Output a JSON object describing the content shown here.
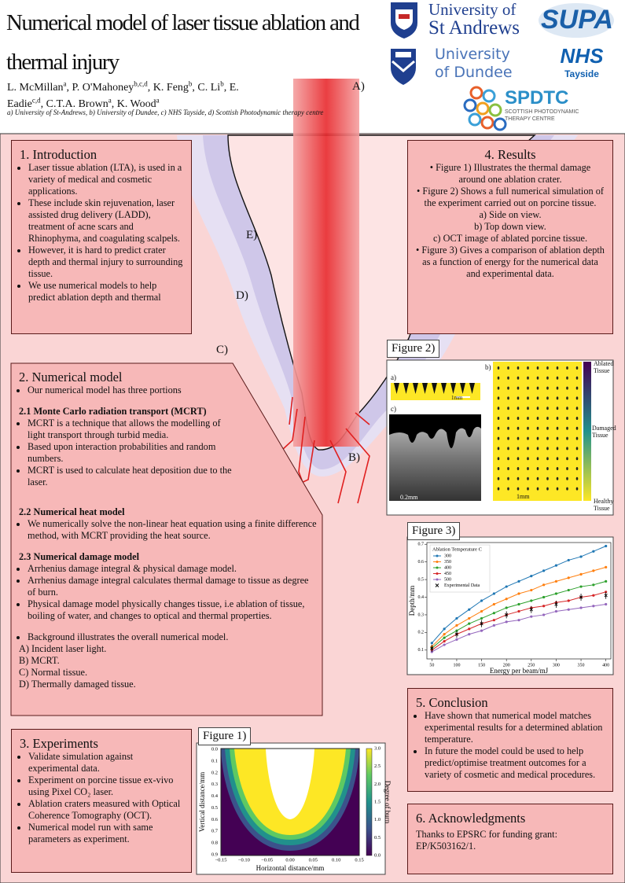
{
  "header": {
    "title": "Numerical model of laser tissue ablation and thermal injury",
    "authors": [
      {
        "name": "L. McMillan",
        "aff": "a"
      },
      {
        "name": "P. O'Mahoney",
        "aff": "b,c,d"
      },
      {
        "name": "K. Feng",
        "aff": "b"
      },
      {
        "name": "C. Li",
        "aff": "b"
      },
      {
        "name": "E. Eadie",
        "aff": "c,d"
      },
      {
        "name": "C.T.A. Brown",
        "aff": "a"
      },
      {
        "name": "K. Wood",
        "aff": "a"
      }
    ],
    "affiliations": "a) University of St-Andrews, b) University of Dundee, c) NHS Tayside, d) Scottish Photodynamic therapy centre"
  },
  "logos": {
    "st_andrews": [
      "University of",
      "St Andrews"
    ],
    "supa": "SUPA",
    "dundee": [
      "University",
      "of Dundee"
    ],
    "nhs": [
      "NHS",
      "Tayside"
    ],
    "spdtc": [
      "SPDTC",
      "SCOTTISH PHOTODYNAMIC",
      "THERAPY CENTRE"
    ]
  },
  "diagram_labels": [
    "A)",
    "B)",
    "C)",
    "D)",
    "E)"
  ],
  "introduction": {
    "title": "1. Introduction",
    "bullets": [
      "Laser tissue ablation (LTA), is used in a variety of medical and cosmetic applications.",
      "These include skin rejuvenation, laser assisted drug delivery (LADD), treatment of acne scars and Rhinophyma, and coagulating scalpels.",
      "However, it is hard to predict crater depth and thermal injury to surrounding tissue.",
      "We use numerical models to help predict ablation depth and thermal"
    ]
  },
  "results": {
    "title": "4. Results",
    "items": [
      "• Figure 1) Illustrates the thermal damage around one ablation crater.",
      "• Figure 2) Shows a full numerical simulation of the experiment carried out on porcine tissue.",
      "a) Side on view.",
      "b) Top down view.",
      "c) OCT image of ablated porcine tissue.",
      "• Figure 3) Gives a comparison of ablation depth as a function of energy for the numerical data and experimental data."
    ]
  },
  "numerical_model": {
    "title": "2. Numerical model",
    "intro": [
      "Our numerical model has three portions"
    ],
    "subsections": [
      {
        "title": "2.1 Monte Carlo radiation transport (MCRT)",
        "bullets": [
          "MCRT is a technique that allows the modelling of light transport through turbid media.",
          "Based upon interaction probabilities and random numbers.",
          "MCRT is used to calculate heat deposition due to the laser."
        ]
      },
      {
        "title": "2.2 Numerical heat model",
        "bullets": [
          "We numerically solve the non-linear heat equation using a finite difference method, with MCRT providing the heat source."
        ]
      },
      {
        "title": "2.3 Numerical damage model",
        "bullets": [
          "Arrhenius damage integral & physical damage model.",
          "Arrhenius damage integral calculates thermal damage to tissue as degree of burn.",
          "Physical damage model physically changes tissue, i.e ablation of tissue, boiling of water, and changes to optical and thermal properties."
        ]
      }
    ],
    "background": [
      "Background illustrates the overall numerical model."
    ],
    "key": [
      "A) Incident laser light.",
      "B) MCRT.",
      "C) Normal tissue.",
      "D) Thermally damaged tissue."
    ]
  },
  "experiments": {
    "title": "3. Experiments",
    "bullets": [
      "Validate simulation against experimental data.",
      "Experiment on porcine tissue ex-vivo using Pixel CO₂ laser.",
      "Ablation craters measured with Optical Coherence Tomography (OCT).",
      "Numerical model run with same parameters as experiment."
    ]
  },
  "conclusion": {
    "title": "5. Conclusion",
    "bullets": [
      "Have shown that numerical model matches experimental results for a determined ablation temperature.",
      "In future the model could be used to help predict/optimise treatment outcomes for a variety of cosmetic and medical procedures."
    ]
  },
  "acknowledgments": {
    "title": "6. Acknowledgments",
    "text": "Thanks to EPSRC for funding grant: EP/K503162/1."
  },
  "figure1": {
    "title": "Figure 1)",
    "xlabel": "Horizontal distance/mm",
    "ylabel": "Vertical distance/mm",
    "colorbar_label": "Degree of burn",
    "xticks": [
      "−0.15",
      "−0.10",
      "−0.05",
      "0.00",
      "0.05",
      "0.10",
      "0.15"
    ],
    "yticks": [
      "0.0",
      "0.1",
      "0.2",
      "0.3",
      "0.4",
      "0.5",
      "0.6",
      "0.7",
      "0.8",
      "0.9"
    ],
    "colorbar_ticks": [
      "0.0",
      "0.5",
      "1.0",
      "1.5",
      "2.0",
      "2.5",
      "3.0"
    ]
  },
  "figure2": {
    "title": "Figure 2)",
    "panel_labels": [
      "a)",
      "b)",
      "c)"
    ],
    "scale_labels": [
      "1mm",
      "0.2mm",
      "1mm"
    ],
    "colorbar_labels": [
      "Ablated Tissue",
      "Damaged Tissue",
      "Healthy Tissue"
    ]
  },
  "chart_data": {
    "type": "line",
    "title": "Figure 3)",
    "xlabel": "Energy per beam/mJ",
    "ylabel": "Depth/mm",
    "legend_title": "Ablation Temperature C",
    "legend": "upper left",
    "x": [
      50,
      75,
      100,
      125,
      150,
      175,
      200,
      225,
      250,
      275,
      300,
      325,
      350,
      375,
      400
    ],
    "series": [
      {
        "name": "300",
        "color": "#1f77b4",
        "values": [
          0.14,
          0.22,
          0.28,
          0.33,
          0.38,
          0.42,
          0.46,
          0.49,
          0.52,
          0.55,
          0.58,
          0.61,
          0.63,
          0.66,
          0.69
        ]
      },
      {
        "name": "350",
        "color": "#ff7f0e",
        "values": [
          0.12,
          0.19,
          0.24,
          0.28,
          0.32,
          0.36,
          0.39,
          0.42,
          0.44,
          0.47,
          0.49,
          0.51,
          0.53,
          0.55,
          0.57
        ]
      },
      {
        "name": "400",
        "color": "#2ca02c",
        "values": [
          0.11,
          0.17,
          0.21,
          0.25,
          0.28,
          0.31,
          0.34,
          0.36,
          0.38,
          0.4,
          0.42,
          0.44,
          0.46,
          0.47,
          0.49
        ]
      },
      {
        "name": "450",
        "color": "#d62728",
        "values": [
          0.1,
          0.15,
          0.19,
          0.22,
          0.25,
          0.27,
          0.3,
          0.32,
          0.34,
          0.35,
          0.37,
          0.38,
          0.4,
          0.41,
          0.43
        ]
      },
      {
        "name": "500",
        "color": "#9467bd",
        "values": [
          0.09,
          0.13,
          0.16,
          0.19,
          0.21,
          0.24,
          0.26,
          0.27,
          0.29,
          0.3,
          0.32,
          0.33,
          0.34,
          0.35,
          0.36
        ]
      }
    ],
    "experimental": {
      "name": "Experimental Data",
      "color": "#000000",
      "x": [
        50,
        100,
        150,
        200,
        250,
        300,
        350,
        400
      ],
      "values": [
        0.11,
        0.19,
        0.25,
        0.3,
        0.33,
        0.36,
        0.4,
        0.41
      ],
      "errors": [
        0.02,
        0.02,
        0.02,
        0.02,
        0.02,
        0.02,
        0.02,
        0.02
      ]
    },
    "xlim": [
      40,
      410
    ],
    "ylim": [
      0.05,
      0.71
    ],
    "xticks": [
      50,
      100,
      150,
      200,
      250,
      300,
      350,
      400
    ],
    "yticks": [
      0.1,
      0.2,
      0.3,
      0.4,
      0.5,
      0.6,
      0.7
    ]
  }
}
